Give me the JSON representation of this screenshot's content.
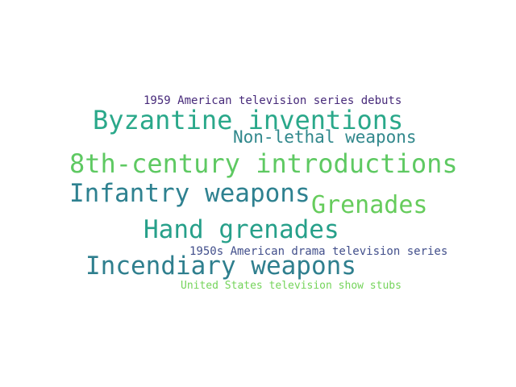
{
  "word_cloud": {
    "words": [
      {
        "text": "1959 American television series debuts",
        "color": "#472a7a"
      },
      {
        "text": "Byzantine inventions",
        "color": "#2aa88a"
      },
      {
        "text": "Non-lethal weapons",
        "color": "#31888c"
      },
      {
        "text": "8th-century introductions",
        "color": "#5ec962"
      },
      {
        "text": "Infantry weapons",
        "color": "#2e8190"
      },
      {
        "text": "Grenades",
        "color": "#66cc5c"
      },
      {
        "text": "Hand grenades",
        "color": "#27a08a"
      },
      {
        "text": "1950s American drama television series",
        "color": "#424f8b"
      },
      {
        "text": "Incendiary weapons",
        "color": "#2f7f8e"
      },
      {
        "text": "United States television show stubs",
        "color": "#74d45a"
      }
    ]
  }
}
